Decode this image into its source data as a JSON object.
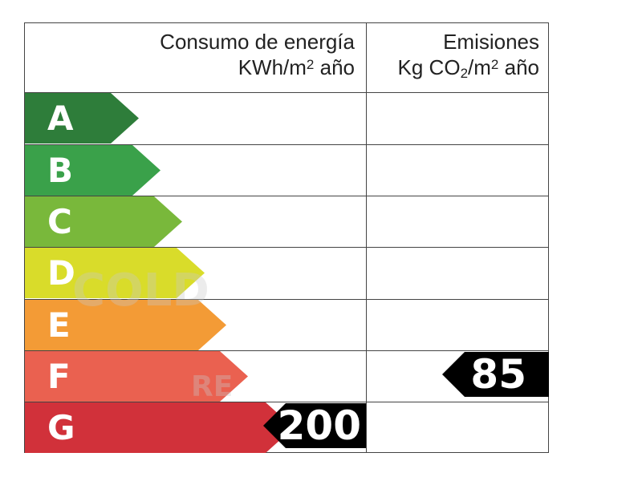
{
  "header": {
    "energy_title": "Consumo de energía",
    "energy_unit_main": "KWh/m",
    "energy_unit_sup": "2",
    "energy_unit_tail": " año",
    "emissions_title": "Emisiones",
    "emissions_unit_pre": "Kg CO",
    "emissions_unit_sub": "2",
    "emissions_unit_mid": "/m",
    "emissions_unit_sup": "2",
    "emissions_unit_tail": " año"
  },
  "classes": [
    {
      "letter": "A",
      "color": "#2e7d3a"
    },
    {
      "letter": "B",
      "color": "#3aa14a"
    },
    {
      "letter": "C",
      "color": "#79b83b"
    },
    {
      "letter": "D",
      "color": "#d9dc2a"
    },
    {
      "letter": "E",
      "color": "#f39b36"
    },
    {
      "letter": "F",
      "color": "#ea6150"
    },
    {
      "letter": "G",
      "color": "#d1313a"
    }
  ],
  "energy_rating": {
    "class": "G",
    "value": "200"
  },
  "emissions_rating": {
    "class": "F",
    "value": "85"
  },
  "watermark": {
    "line1": "COLD",
    "line2": "RE"
  }
}
